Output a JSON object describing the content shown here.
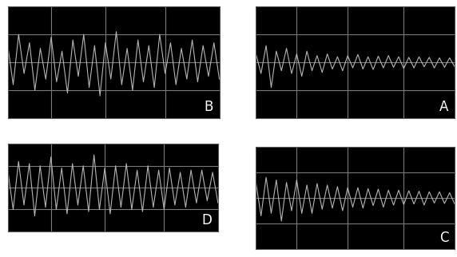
{
  "chart_data": [
    {
      "type": "line",
      "annotation": "B",
      "color": "#b4b4b4",
      "grid": true,
      "tick_labels": false,
      "x": [
        0,
        1,
        2,
        3,
        4,
        5,
        6,
        7,
        8,
        9,
        10,
        11,
        12,
        13,
        14,
        15,
        16,
        17,
        18,
        19,
        20,
        21,
        22,
        23,
        24,
        25,
        26,
        27,
        28,
        29,
        30,
        31,
        32,
        33,
        34,
        35,
        36,
        37,
        38,
        39
      ],
      "values": [
        0.3,
        -0.4,
        0.5,
        -0.2,
        0.35,
        -0.5,
        0.25,
        -0.3,
        0.45,
        -0.35,
        0.2,
        -0.55,
        0.4,
        -0.25,
        0.5,
        -0.45,
        0.3,
        -0.6,
        0.35,
        -0.3,
        0.55,
        -0.4,
        0.25,
        -0.5,
        0.4,
        -0.35,
        0.3,
        -0.45,
        0.5,
        -0.2,
        0.35,
        -0.4,
        0.25,
        -0.3,
        0.4,
        -0.35,
        0.3,
        -0.25,
        0.35,
        -0.3
      ],
      "xlim": [
        0,
        39
      ],
      "xticks": [
        8,
        18,
        29
      ],
      "ylim": [
        -1,
        1
      ],
      "yticks": [
        -0.5,
        0,
        0.5
      ]
    },
    {
      "type": "line",
      "annotation": "A",
      "color": "#b4b4b4",
      "grid": true,
      "tick_labels": false,
      "x": [
        0,
        1,
        2,
        3,
        4,
        5,
        6,
        7,
        8,
        9,
        10,
        11,
        12,
        13,
        14,
        15,
        16,
        17,
        18,
        19,
        20,
        21,
        22,
        23,
        24,
        25,
        26,
        27,
        28,
        29,
        30,
        31,
        32,
        33,
        34,
        35,
        36,
        37,
        38,
        39
      ],
      "values": [
        0.15,
        -0.2,
        0.3,
        -0.45,
        0.2,
        -0.15,
        0.25,
        -0.2,
        0.15,
        -0.25,
        0.2,
        -0.15,
        0.12,
        -0.18,
        0.15,
        -0.12,
        0.1,
        -0.15,
        0.12,
        -0.1,
        0.14,
        -0.12,
        0.1,
        -0.13,
        0.11,
        -0.1,
        0.12,
        -0.09,
        0.1,
        -0.11,
        0.09,
        -0.1,
        0.1,
        -0.08,
        0.09,
        -0.1,
        0.08,
        -0.09,
        0.08,
        -0.08
      ],
      "xlim": [
        0,
        39
      ],
      "xticks": [
        8,
        18,
        29
      ],
      "ylim": [
        -1,
        1
      ],
      "yticks": [
        -0.5,
        0,
        0.5
      ]
    },
    {
      "type": "line",
      "annotation": "D",
      "color": "#b4b4b4",
      "grid": true,
      "tick_labels": false,
      "x": [
        0,
        1,
        2,
        3,
        4,
        5,
        6,
        7,
        8,
        9,
        10,
        11,
        12,
        13,
        14,
        15,
        16,
        17,
        18,
        19,
        20,
        21,
        22,
        23,
        24,
        25,
        26,
        27,
        28,
        29,
        30,
        31,
        32,
        33,
        34,
        35,
        36,
        37,
        38,
        39
      ],
      "values": [
        0.4,
        -0.5,
        0.6,
        -0.4,
        0.55,
        -0.65,
        0.5,
        -0.45,
        0.7,
        -0.5,
        0.45,
        -0.6,
        0.55,
        -0.4,
        0.5,
        -0.55,
        0.75,
        -0.5,
        0.45,
        -0.6,
        0.5,
        -0.45,
        0.55,
        -0.5,
        0.4,
        -0.55,
        0.5,
        -0.45,
        0.4,
        -0.5,
        0.45,
        -0.4,
        0.35,
        -0.45,
        0.4,
        -0.35,
        0.4,
        -0.3,
        0.35,
        -0.35
      ],
      "xlim": [
        0,
        39
      ],
      "xticks": [
        8,
        18,
        29
      ],
      "ylim": [
        -1,
        1
      ],
      "yticks": [
        -0.5,
        0,
        0.5
      ]
    },
    {
      "type": "line",
      "annotation": "C",
      "color": "#b4b4b4",
      "grid": true,
      "tick_labels": false,
      "x": [
        0,
        1,
        2,
        3,
        4,
        5,
        6,
        7,
        8,
        9,
        10,
        11,
        12,
        13,
        14,
        15,
        16,
        17,
        18,
        19,
        20,
        21,
        22,
        23,
        24,
        25,
        26,
        27,
        28,
        29,
        30,
        31,
        32,
        33,
        34,
        35,
        36,
        37,
        38,
        39
      ],
      "values": [
        0.3,
        -0.35,
        0.4,
        -0.3,
        0.35,
        -0.45,
        0.3,
        -0.25,
        0.35,
        -0.3,
        0.25,
        -0.3,
        0.28,
        -0.22,
        0.25,
        -0.2,
        0.22,
        -0.25,
        0.2,
        -0.18,
        0.2,
        -0.2,
        0.18,
        -0.15,
        0.17,
        -0.18,
        0.15,
        -0.14,
        0.15,
        -0.13,
        0.14,
        -0.12,
        0.13,
        -0.14,
        0.12,
        -0.1,
        0.12,
        -0.11,
        0.1,
        -0.12
      ],
      "xlim": [
        0,
        39
      ],
      "xticks": [
        8,
        18,
        29
      ],
      "ylim": [
        -1,
        1
      ],
      "yticks": [
        -0.5,
        0,
        0.5
      ]
    }
  ]
}
